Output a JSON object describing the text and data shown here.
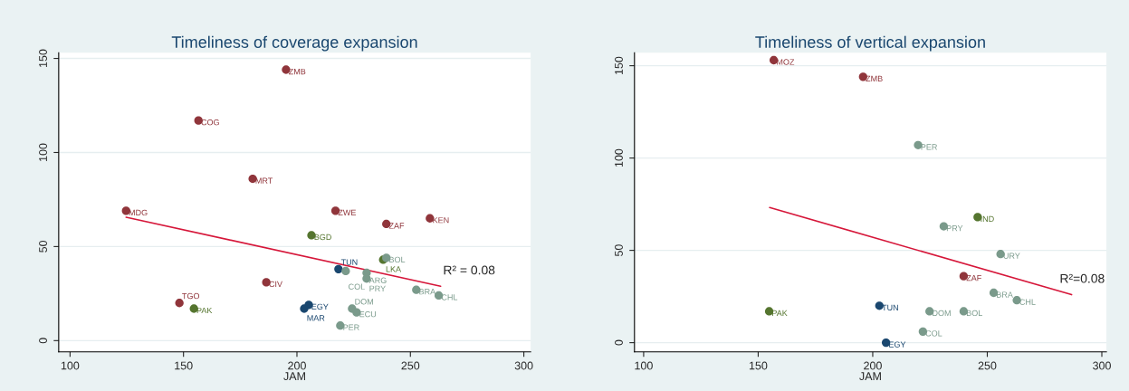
{
  "chart_data": [
    {
      "type": "scatter",
      "title": "Timeliness of coverage expansion",
      "xlabel": "JAM",
      "xlim": [
        95,
        303
      ],
      "xticks": [
        100,
        150,
        200,
        250,
        300
      ],
      "ylim": [
        -6,
        153
      ],
      "yticks": [
        0,
        50,
        100,
        150
      ],
      "grid": "y",
      "marker": "circle",
      "series": [
        {
          "type": "scatter",
          "color": "#90353b",
          "x": [
            195.2,
            156.6,
            180.5,
            124.7,
            217,
            239.4,
            258.6,
            186.5,
            148.2
          ],
          "values": [
            144,
            117,
            86,
            69,
            69,
            62,
            65,
            31,
            20
          ]
        },
        {
          "type": "scatter",
          "color": "#55752f",
          "x": [
            206.4,
            238,
            154.6
          ],
          "values": [
            56,
            43,
            17
          ]
        },
        {
          "type": "scatter",
          "color": "#1a476f",
          "x": [
            218.3,
            205.2,
            203.2
          ],
          "values": [
            38,
            19,
            17
          ]
        },
        {
          "type": "scatter",
          "color": "#7a9a8b",
          "x": [
            239.4,
            221.5,
            230.7,
            230.7,
            252.6,
            262.5,
            224.3,
            226.3,
            219.1
          ],
          "values": [
            44,
            37,
            36,
            33,
            27,
            24,
            17,
            15,
            8
          ]
        },
        {
          "type": "line",
          "marker": "none",
          "color": "#d6173a",
          "x": [
            124.7,
            263.3
          ],
          "values": [
            65.6,
            28.9
          ]
        }
      ],
      "annotations": [
        {
          "text": "ZMB",
          "x": 195.2,
          "y": 144
        },
        {
          "text": "COG",
          "x": 156.6,
          "y": 117
        },
        {
          "text": "MRT",
          "x": 180.5,
          "y": 86
        },
        {
          "text": "MDG",
          "x": 124.7,
          "y": 69
        },
        {
          "text": "ZWE",
          "x": 217,
          "y": 69
        },
        {
          "text": "ZAF",
          "x": 239.4,
          "y": 62
        },
        {
          "text": "KEN",
          "x": 258.6,
          "y": 65
        },
        {
          "text": "CIV",
          "x": 186.5,
          "y": 31
        },
        {
          "text": "TGO",
          "x": 148.2,
          "y": 20
        },
        {
          "text": "BGD",
          "x": 206.4,
          "y": 56
        },
        {
          "text": "LKA",
          "x": 238,
          "y": 43
        },
        {
          "text": "PAK",
          "x": 154.6,
          "y": 17
        },
        {
          "text": "TUN",
          "x": 218.3,
          "y": 38
        },
        {
          "text": "EGY",
          "x": 205.2,
          "y": 19
        },
        {
          "text": "MAR",
          "x": 203.2,
          "y": 17
        },
        {
          "text": "BOL",
          "x": 239.4,
          "y": 44
        },
        {
          "text": "COL",
          "x": 221.5,
          "y": 37
        },
        {
          "text": "PRY",
          "x": 230.7,
          "y": 36
        },
        {
          "text": "ARG",
          "x": 230.7,
          "y": 33
        },
        {
          "text": "BRA",
          "x": 252.6,
          "y": 27
        },
        {
          "text": "CHL",
          "x": 262.5,
          "y": 24
        },
        {
          "text": "DOM",
          "x": 224.3,
          "y": 17
        },
        {
          "text": "ECU",
          "x": 226.3,
          "y": 15
        },
        {
          "text": "PER",
          "x": 219.1,
          "y": 8
        },
        "R² = 0.08"
      ]
    },
    {
      "type": "scatter",
      "title": "Timeliness of vertical expansion",
      "xlabel": "JAM",
      "xlim": [
        96,
        302
      ],
      "xticks": [
        100,
        150,
        200,
        250,
        300
      ],
      "ylim": [
        -5,
        157
      ],
      "yticks": [
        0,
        50,
        100,
        150
      ],
      "grid": "y",
      "marker": "circle",
      "series": [
        {
          "type": "scatter",
          "color": "#90353b",
          "x": [
            156.8,
            195.8,
            239.7
          ],
          "values": [
            153,
            144,
            36
          ]
        },
        {
          "type": "scatter",
          "color": "#55752f",
          "x": [
            245.8,
            154.8
          ],
          "values": [
            68,
            17
          ]
        },
        {
          "type": "scatter",
          "color": "#1a476f",
          "x": [
            202.9,
            205.8
          ],
          "values": [
            20,
            0
          ]
        },
        {
          "type": "scatter",
          "color": "#7a9a8b",
          "x": [
            219.8,
            231,
            255.8,
            252.8,
            262.9,
            224.8,
            239.7,
            221.9
          ],
          "values": [
            107,
            63,
            48,
            27,
            23,
            17,
            17,
            6
          ]
        },
        {
          "type": "line",
          "marker": "none",
          "color": "#d6173a",
          "x": [
            155,
            286.8
          ],
          "values": [
            73.2,
            26
          ]
        }
      ],
      "annotations": [
        {
          "text": "MOZ",
          "x": 156.8,
          "y": 153
        },
        {
          "text": "ZMB",
          "x": 195.8,
          "y": 144
        },
        {
          "text": "ZAF",
          "x": 239.7,
          "y": 36
        },
        {
          "text": "IND",
          "x": 245.8,
          "y": 68
        },
        {
          "text": "PAK",
          "x": 154.8,
          "y": 17
        },
        {
          "text": "TUN",
          "x": 202.9,
          "y": 20
        },
        {
          "text": "EGY",
          "x": 205.8,
          "y": 0
        },
        {
          "text": "PER",
          "x": 219.8,
          "y": 107
        },
        {
          "text": "PRY",
          "x": 231,
          "y": 63
        },
        {
          "text": "URY",
          "x": 255.8,
          "y": 48
        },
        {
          "text": "BRA",
          "x": 252.8,
          "y": 27
        },
        {
          "text": "CHL",
          "x": 262.9,
          "y": 23
        },
        {
          "text": "DOM",
          "x": 224.8,
          "y": 17
        },
        {
          "text": "BOL",
          "x": 239.7,
          "y": 17
        },
        {
          "text": "COL",
          "x": 221.9,
          "y": 6
        },
        "R²=0.08"
      ]
    }
  ]
}
